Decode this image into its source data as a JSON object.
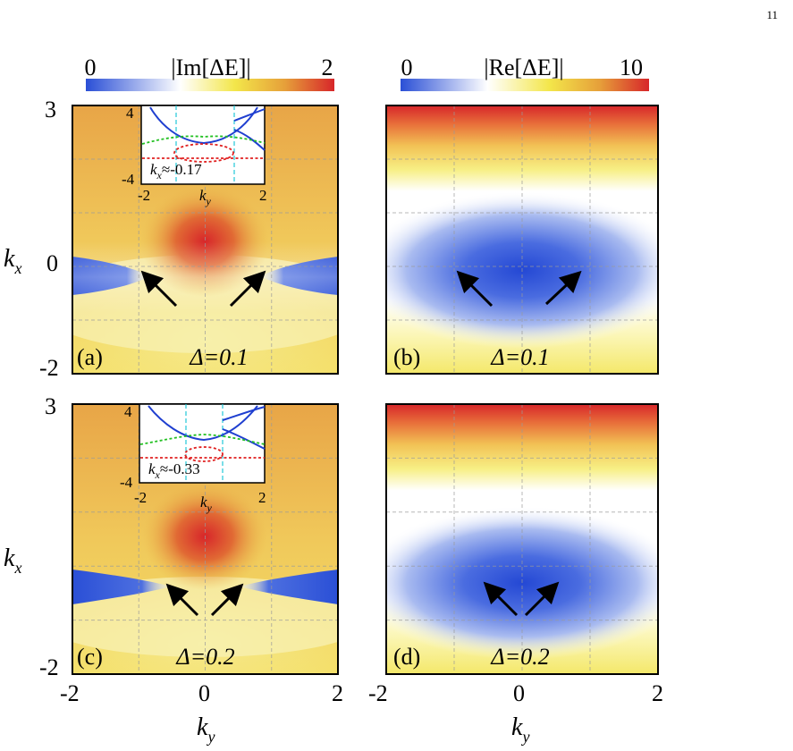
{
  "page_number": "11",
  "colorbars": {
    "left": {
      "min_label": "0",
      "max_label": "2",
      "title": "|Im[ΔE]|",
      "colors": [
        "#2a4fd6",
        "#ffffff",
        "#f3e64a",
        "#e6a03a",
        "#d7262a"
      ]
    },
    "right": {
      "min_label": "0",
      "max_label": "10",
      "title": "|Re[ΔE]|",
      "colors": [
        "#2a4fd6",
        "#ffffff",
        "#f3e64a",
        "#e6a03a",
        "#d7262a"
      ]
    }
  },
  "axes": {
    "kx_label": "k",
    "kx_sub": "x",
    "ky_label": "k",
    "ky_sub": "y",
    "kx_ticks": [
      "3",
      "0",
      "-2"
    ],
    "ky_ticks": [
      "-2",
      "0",
      "2"
    ]
  },
  "chart_data": [
    {
      "type": "heatmap",
      "panel": "(a)",
      "label": "(a)",
      "annotation": "Δ=0.1",
      "quantity": "|Im[ΔE]|",
      "xlim": [
        -2,
        2
      ],
      "ylim": [
        -2,
        3
      ],
      "clim": [
        0,
        2
      ],
      "exceptional_points": [
        [
          -0.9,
          -0.17
        ],
        [
          0.9,
          -0.17
        ]
      ],
      "inset": {
        "kx_text": "k",
        "kx_sub": "x",
        "value_text": "≈-0.17",
        "xlabel": "k",
        "xlabel_sub": "y",
        "xticks": [
          "-2",
          "2"
        ],
        "yticks": [
          "4",
          "-4"
        ],
        "xlim": [
          -2,
          2
        ],
        "ylim": [
          -4,
          4
        ],
        "series_colors": [
          "#1f3fd0",
          "#22c022",
          "#e02020",
          "#22c8d8"
        ]
      }
    },
    {
      "type": "heatmap",
      "panel": "(b)",
      "label": "(b)",
      "annotation": "Δ=0.1",
      "quantity": "|Re[ΔE]|",
      "xlim": [
        -2,
        2
      ],
      "ylim": [
        -2,
        3
      ],
      "clim": [
        0,
        10
      ],
      "minimum": [
        0,
        -0.17
      ]
    },
    {
      "type": "heatmap",
      "panel": "(c)",
      "label": "(c)",
      "annotation": "Δ=0.2",
      "quantity": "|Im[ΔE]|",
      "xlim": [
        -2,
        2
      ],
      "ylim": [
        -2,
        3
      ],
      "clim": [
        0,
        2
      ],
      "exceptional_points": [
        [
          -0.55,
          -0.33
        ],
        [
          0.55,
          -0.33
        ]
      ],
      "inset": {
        "kx_text": "k",
        "kx_sub": "x",
        "value_text": "≈-0.33",
        "xlabel": "k",
        "xlabel_sub": "y",
        "xticks": [
          "-2",
          "2"
        ],
        "yticks": [
          "4",
          "-4"
        ],
        "xlim": [
          -2,
          2
        ],
        "ylim": [
          -4,
          4
        ],
        "series_colors": [
          "#1f3fd0",
          "#22c022",
          "#e02020",
          "#22c8d8"
        ]
      }
    },
    {
      "type": "heatmap",
      "panel": "(d)",
      "label": "(d)",
      "annotation": "Δ=0.2",
      "quantity": "|Re[ΔE]|",
      "xlim": [
        -2,
        2
      ],
      "ylim": [
        -2,
        3
      ],
      "clim": [
        0,
        10
      ],
      "minimum": [
        0,
        -0.33
      ]
    }
  ]
}
